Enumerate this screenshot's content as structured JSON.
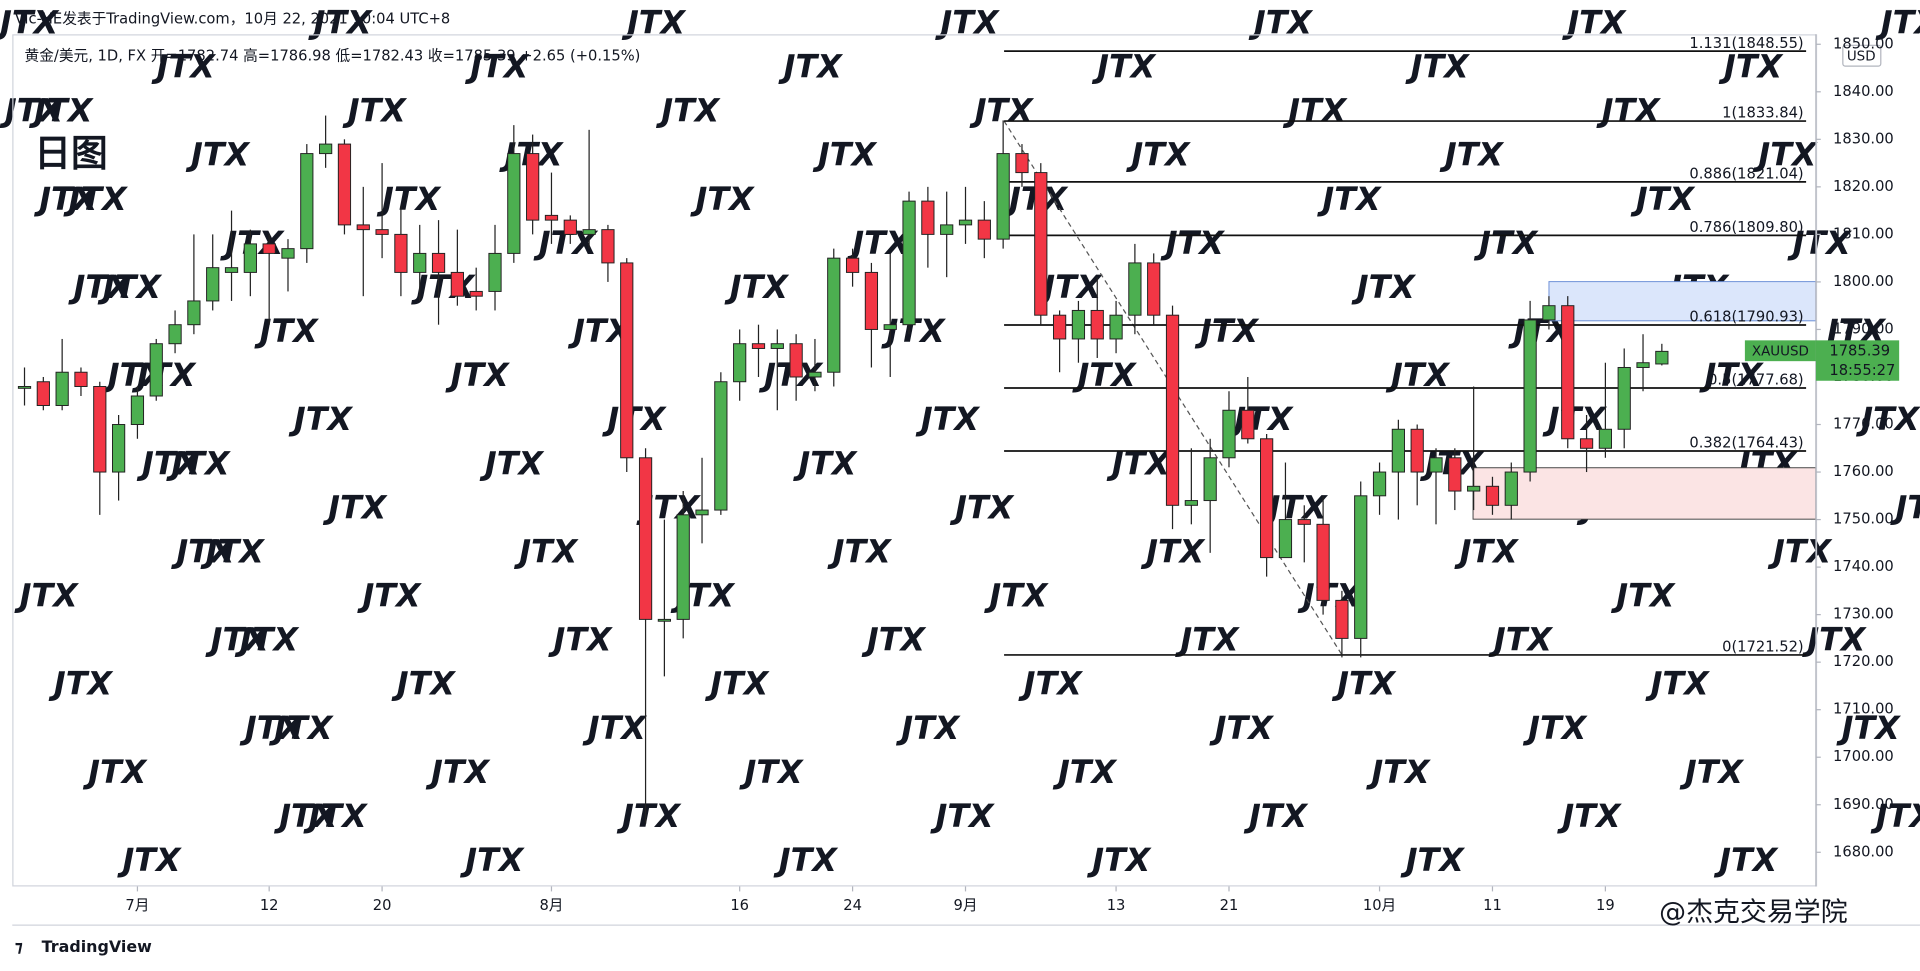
{
  "header": {
    "author_line": "Vic-HE发表于TradingView.com，10月 22, 2021 10:04 UTC+8",
    "ohlc_line": "黄金/美元, 1D, FX  开=1782.74  高=1786.98  低=1782.43  收=1785.39  +2.65 (+0.15%)"
  },
  "chart_data": {
    "type": "candlestick",
    "title": "日图",
    "categories": [
      null,
      null,
      null,
      null,
      null,
      null,
      "7月",
      null,
      null,
      null,
      null,
      null,
      null,
      "12",
      null,
      null,
      null,
      null,
      null,
      "20",
      null,
      null,
      null,
      null,
      null,
      null,
      null,
      null,
      "8月",
      null,
      null,
      null,
      null,
      null,
      null,
      null,
      null,
      null,
      "16",
      null,
      null,
      null,
      null,
      null,
      "24",
      null,
      null,
      null,
      null,
      null,
      "9月",
      null,
      null,
      null,
      null,
      null,
      null,
      null,
      "13",
      null,
      null,
      null,
      null,
      null,
      "21",
      null,
      null,
      null,
      null,
      null,
      null,
      null,
      "10月",
      null,
      null,
      null,
      null,
      null,
      "11",
      null,
      null,
      null,
      null,
      null,
      "19",
      null,
      null,
      null
    ],
    "open": [
      1778,
      1779,
      1774,
      1781,
      1778,
      1760,
      1770,
      1776,
      1787,
      1791,
      1796,
      1802,
      1802,
      1808,
      1805,
      1807,
      1827,
      1829,
      1812,
      1811,
      1810,
      1802,
      1806,
      1802,
      1798,
      1798,
      1806,
      1827,
      1814,
      1813,
      1810,
      1811,
      1804,
      1763,
      1729,
      1729,
      1751,
      1752,
      1779,
      1787,
      1786,
      1787,
      1780,
      1781,
      1805,
      1802,
      1790,
      1791,
      1817,
      1810,
      1812,
      1813,
      1809,
      1827,
      1823,
      1793,
      1788,
      1794,
      1788,
      1793,
      1804,
      1793,
      1753,
      1754,
      1763,
      1773,
      1767,
      1742,
      1750,
      1749,
      1733,
      1725,
      1755,
      1760,
      1769,
      1760,
      1763,
      1756,
      1757,
      1753,
      1760,
      1792,
      1795,
      1767,
      1765,
      1769,
      1782,
      1782.74
    ],
    "high": [
      1782,
      1780,
      1788,
      1782,
      1779,
      1772,
      1778,
      1788,
      1794,
      1810,
      1810,
      1815,
      1811,
      1810,
      1809,
      1829,
      1835,
      1830,
      1820,
      1825,
      1816,
      1812,
      1813,
      1811,
      1803,
      1812,
      1833,
      1831,
      1823,
      1814,
      1832,
      1812,
      1805,
      1765,
      1750,
      1756,
      1763,
      1781,
      1790,
      1791,
      1790,
      1789,
      1788,
      1807,
      1807,
      1804,
      1806,
      1819,
      1820,
      1819,
      1820,
      1817,
      1834,
      1829,
      1825,
      1794,
      1796,
      1801,
      1796,
      1808,
      1806,
      1795,
      1765,
      1767,
      1777,
      1780,
      1768,
      1762,
      1753,
      1755,
      1735,
      1758,
      1762,
      1771,
      1770,
      1765,
      1765,
      1778,
      1759,
      1762,
      1796,
      1797,
      1797,
      1772,
      1783,
      1786,
      1789,
      1786.98
    ],
    "low": [
      1774,
      1773,
      1773,
      1776,
      1751,
      1754,
      1767,
      1775,
      1785,
      1789,
      1794,
      1796,
      1797,
      1791,
      1798,
      1804,
      1824,
      1810,
      1797,
      1805,
      1797,
      1796,
      1791,
      1795,
      1794,
      1794,
      1804,
      1810,
      1808,
      1808,
      1807,
      1800,
      1760,
      1686,
      1717,
      1725,
      1745,
      1751,
      1775,
      1780,
      1773,
      1775,
      1777,
      1778,
      1799,
      1782,
      1780,
      1789,
      1803,
      1801,
      1808,
      1805,
      1807,
      1820,
      1791,
      1781,
      1783,
      1784,
      1785,
      1789,
      1791,
      1748,
      1749,
      1743,
      1761,
      1766,
      1738,
      1742,
      1741,
      1730,
      1721,
      1721,
      1751,
      1750,
      1753,
      1749,
      1752,
      1752,
      1751,
      1750,
      1758,
      1790,
      1765,
      1760,
      1763,
      1765,
      1777,
      1782.43
    ],
    "close": [
      1778,
      1774,
      1781,
      1778,
      1760,
      1770,
      1776,
      1787,
      1791,
      1796,
      1803,
      1803,
      1808,
      1806,
      1807,
      1827,
      1829,
      1812,
      1811,
      1810,
      1802,
      1806,
      1802,
      1797,
      1797,
      1806,
      1827,
      1813,
      1813,
      1810,
      1811,
      1804,
      1763,
      1729,
      1729,
      1751,
      1752,
      1779,
      1787,
      1786,
      1787,
      1780,
      1781,
      1805,
      1802,
      1790,
      1791,
      1817,
      1810,
      1812,
      1813,
      1809,
      1827,
      1823,
      1793,
      1788,
      1794,
      1788,
      1793,
      1804,
      1793,
      1753,
      1754,
      1763,
      1773,
      1767,
      1742,
      1750,
      1749,
      1733,
      1725,
      1755,
      1760,
      1769,
      1760,
      1763,
      1756,
      1757,
      1753,
      1760,
      1792,
      1795,
      1767,
      1765,
      1769,
      1782,
      1783,
      1785.39
    ],
    "up_color": "#4caf50",
    "down_color": "#f23645",
    "ylim": [
      1672.8,
      1852.1
    ],
    "yticks": [
      {
        "value": 1680,
        "label": "1680.00"
      },
      {
        "value": 1690,
        "label": "1690.00"
      },
      {
        "value": 1700,
        "label": "1700.00"
      },
      {
        "value": 1710,
        "label": "1710.00"
      },
      {
        "value": 1720,
        "label": "1720.00"
      },
      {
        "value": 1730,
        "label": "1730.00"
      },
      {
        "value": 1740,
        "label": "1740.00"
      },
      {
        "value": 1750,
        "label": "1750.00"
      },
      {
        "value": 1760,
        "label": "1760.00"
      },
      {
        "value": 1770,
        "label": "1770.00"
      },
      {
        "value": 1780,
        "label": "1780.00"
      },
      {
        "value": 1790,
        "label": "1790.00"
      },
      {
        "value": 1800,
        "label": "1800.00"
      },
      {
        "value": 1810,
        "label": "1810.00"
      },
      {
        "value": 1820,
        "label": "1820.00"
      },
      {
        "value": 1830,
        "label": "1830.00"
      },
      {
        "value": 1840,
        "label": "1840.00"
      },
      {
        "value": 1850,
        "label": "1850.00"
      }
    ],
    "fib_levels": [
      {
        "value": 1848.55,
        "label": "1.131(1848.55)"
      },
      {
        "value": 1833.84,
        "label": "1(1833.84)"
      },
      {
        "value": 1821.04,
        "label": "0.886(1821.04)"
      },
      {
        "value": 1809.8,
        "label": "0.786(1809.80)"
      },
      {
        "value": 1790.93,
        "label": "0.618(1790.93)"
      },
      {
        "value": 1777.68,
        "label": "0.5(1777.68)"
      },
      {
        "value": 1764.43,
        "label": "0.382(1764.43)"
      },
      {
        "value": 1721.52,
        "label": "0(1721.52)"
      }
    ],
    "price_tag": {
      "symbol": "XAUUSD",
      "price": 1785.39,
      "countdown": "18:55:27",
      "color": "#4caf50"
    },
    "currency": "USD"
  },
  "footer": {
    "logo": "TradingView",
    "watermark": "@杰克交易学院",
    "tile": "JTX"
  }
}
